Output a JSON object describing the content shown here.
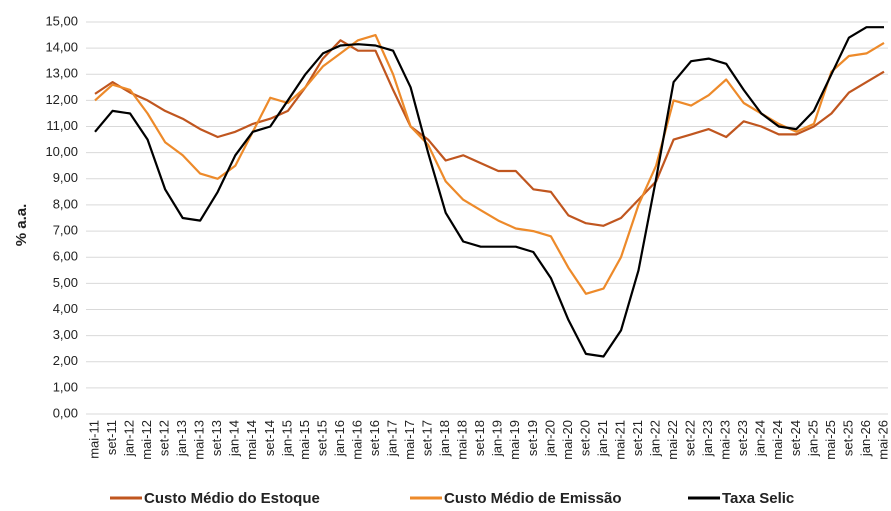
{
  "chart_data": {
    "type": "line",
    "y_label": "% a.a.",
    "categories": [
      "mai-11",
      "set-11",
      "jan-12",
      "mai-12",
      "set-12",
      "jan-13",
      "mai-13",
      "set-13",
      "jan-14",
      "mai-14",
      "set-14",
      "jan-15",
      "mai-15",
      "set-15",
      "jan-16",
      "mai-16",
      "set-16",
      "jan-17",
      "mai-17",
      "set-17",
      "jan-18",
      "mai-18",
      "set-18",
      "jan-19",
      "mai-19",
      "set-19",
      "jan-20",
      "mai-20",
      "set-20",
      "jan-21",
      "mai-21",
      "set-21",
      "jan-22",
      "mai-22",
      "set-22",
      "jan-23",
      "mai-23",
      "set-23",
      "jan-24",
      "mai-24",
      "set-24",
      "jan-25",
      "mai-25",
      "set-25",
      "jan-26",
      "mai-26"
    ],
    "series": [
      {
        "name": "Custo Médio do Estoque",
        "color": "#c0561f",
        "values": [
          12.25,
          12.7,
          12.3,
          12.0,
          11.6,
          11.3,
          10.9,
          10.6,
          10.8,
          11.1,
          11.3,
          11.6,
          12.5,
          13.6,
          14.3,
          13.9,
          13.9,
          12.4,
          11.0,
          10.5,
          9.7,
          9.9,
          9.6,
          9.3,
          9.3,
          8.6,
          8.5,
          7.6,
          7.3,
          7.2,
          7.5,
          8.2,
          8.9,
          10.5,
          10.7,
          10.9,
          10.6,
          11.2,
          11.0,
          10.7,
          10.7,
          11.0,
          11.5,
          12.3,
          12.7,
          13.1
        ]
      },
      {
        "name": "Custo Médio de Emissão",
        "color": "#ed8a2a",
        "values": [
          12.0,
          12.6,
          12.4,
          11.5,
          10.4,
          9.9,
          9.2,
          9.0,
          9.5,
          10.8,
          12.1,
          11.9,
          12.5,
          13.3,
          13.8,
          14.3,
          14.5,
          13.0,
          11.0,
          10.3,
          8.9,
          8.2,
          7.8,
          7.4,
          7.1,
          7.0,
          6.8,
          5.6,
          4.6,
          4.8,
          6.0,
          8.0,
          9.5,
          12.0,
          11.8,
          12.2,
          12.8,
          11.9,
          11.5,
          11.1,
          10.8,
          11.1,
          13.1,
          13.7,
          13.8,
          14.2
        ]
      },
      {
        "name": "Taxa Selic",
        "color": "#000000",
        "values": [
          10.8,
          11.6,
          11.5,
          10.5,
          8.6,
          7.5,
          7.4,
          8.5,
          9.9,
          10.8,
          11.0,
          12.0,
          13.0,
          13.8,
          14.1,
          14.15,
          14.1,
          13.9,
          12.5,
          10.0,
          7.7,
          6.6,
          6.4,
          6.4,
          6.4,
          6.2,
          5.2,
          3.6,
          2.3,
          2.2,
          3.2,
          5.5,
          9.0,
          12.7,
          13.5,
          13.6,
          13.4,
          12.4,
          11.5,
          11.0,
          10.9,
          11.6,
          13.0,
          14.4,
          14.8,
          14.8
        ]
      }
    ],
    "ylim": [
      0,
      15
    ],
    "yticks": [
      {
        "value": 0,
        "label": "0,00"
      },
      {
        "value": 1,
        "label": "1,00"
      },
      {
        "value": 2,
        "label": "2,00"
      },
      {
        "value": 3,
        "label": "3,00"
      },
      {
        "value": 4,
        "label": "4,00"
      },
      {
        "value": 5,
        "label": "5,00"
      },
      {
        "value": 6,
        "label": "6,00"
      },
      {
        "value": 7,
        "label": "7,00"
      },
      {
        "value": 8,
        "label": "8,00"
      },
      {
        "value": 9,
        "label": "9,00"
      },
      {
        "value": 10,
        "label": "10,00"
      },
      {
        "value": 11,
        "label": "11,00"
      },
      {
        "value": 12,
        "label": "12,00"
      },
      {
        "value": 13,
        "label": "13,00"
      },
      {
        "value": 14,
        "label": "14,00"
      },
      {
        "value": 15,
        "label": "15,00"
      }
    ],
    "grid": true
  }
}
